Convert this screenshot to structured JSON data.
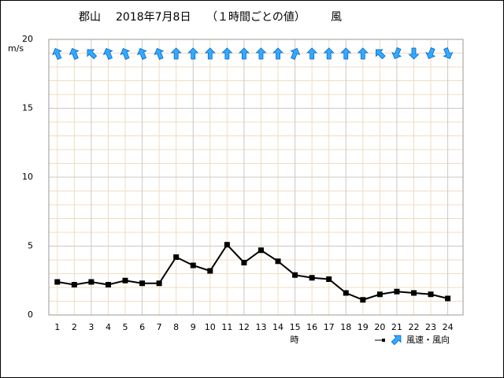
{
  "chart_data": {
    "type": "line",
    "title": "郡山",
    "date": "2018年7月8日",
    "subtitle": "（１時間ごとの値）",
    "element": "風",
    "y_label": "m/s",
    "x_label": "時",
    "legend_label": "風速・風向",
    "x": [
      1,
      2,
      3,
      4,
      5,
      6,
      7,
      8,
      9,
      10,
      11,
      12,
      13,
      14,
      15,
      16,
      17,
      18,
      19,
      20,
      21,
      22,
      23,
      24
    ],
    "series": [
      {
        "name": "風速",
        "color": "#000000",
        "values": [
          2.4,
          2.2,
          2.4,
          2.2,
          2.5,
          2.3,
          2.3,
          4.2,
          3.6,
          3.2,
          5.1,
          3.8,
          4.7,
          3.9,
          2.9,
          2.7,
          2.6,
          1.6,
          1.1,
          1.5,
          1.7,
          1.6,
          1.5,
          1.2
        ]
      }
    ],
    "directions": {
      "name": "風向",
      "color": "#33aaff",
      "values": [
        337.5,
        337.5,
        315,
        337.5,
        337.5,
        337.5,
        337.5,
        0,
        0,
        0,
        0,
        0,
        0,
        0,
        22.5,
        0,
        0,
        0,
        0,
        315,
        202.5,
        180,
        202.5,
        157.5
      ]
    },
    "xlim": [
      0.5,
      24.9
    ],
    "ylim": [
      0,
      20
    ],
    "yticks": [
      0,
      5,
      10,
      15,
      20
    ],
    "grid": true
  }
}
